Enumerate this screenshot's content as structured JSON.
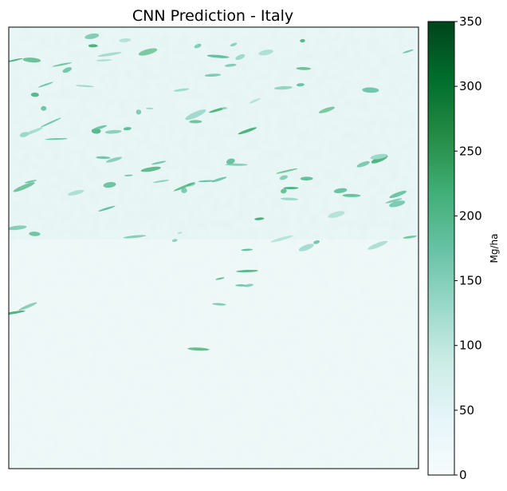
{
  "chart_data": {
    "type": "heatmap",
    "title": "CNN Prediction - Italy",
    "xlabel": "",
    "ylabel": "",
    "colorbar": {
      "label": "Mg/ha",
      "min": 0,
      "max": 350,
      "ticks": [
        0,
        50,
        100,
        150,
        200,
        250,
        300,
        350
      ],
      "colors": [
        "#f7fcfd",
        "#e5f5f9",
        "#ccece6",
        "#99d8c9",
        "#66c2a4",
        "#41ae76",
        "#238b45",
        "#006d2c",
        "#00441b"
      ]
    },
    "grid": false,
    "axes_ticks_visible": false
  }
}
